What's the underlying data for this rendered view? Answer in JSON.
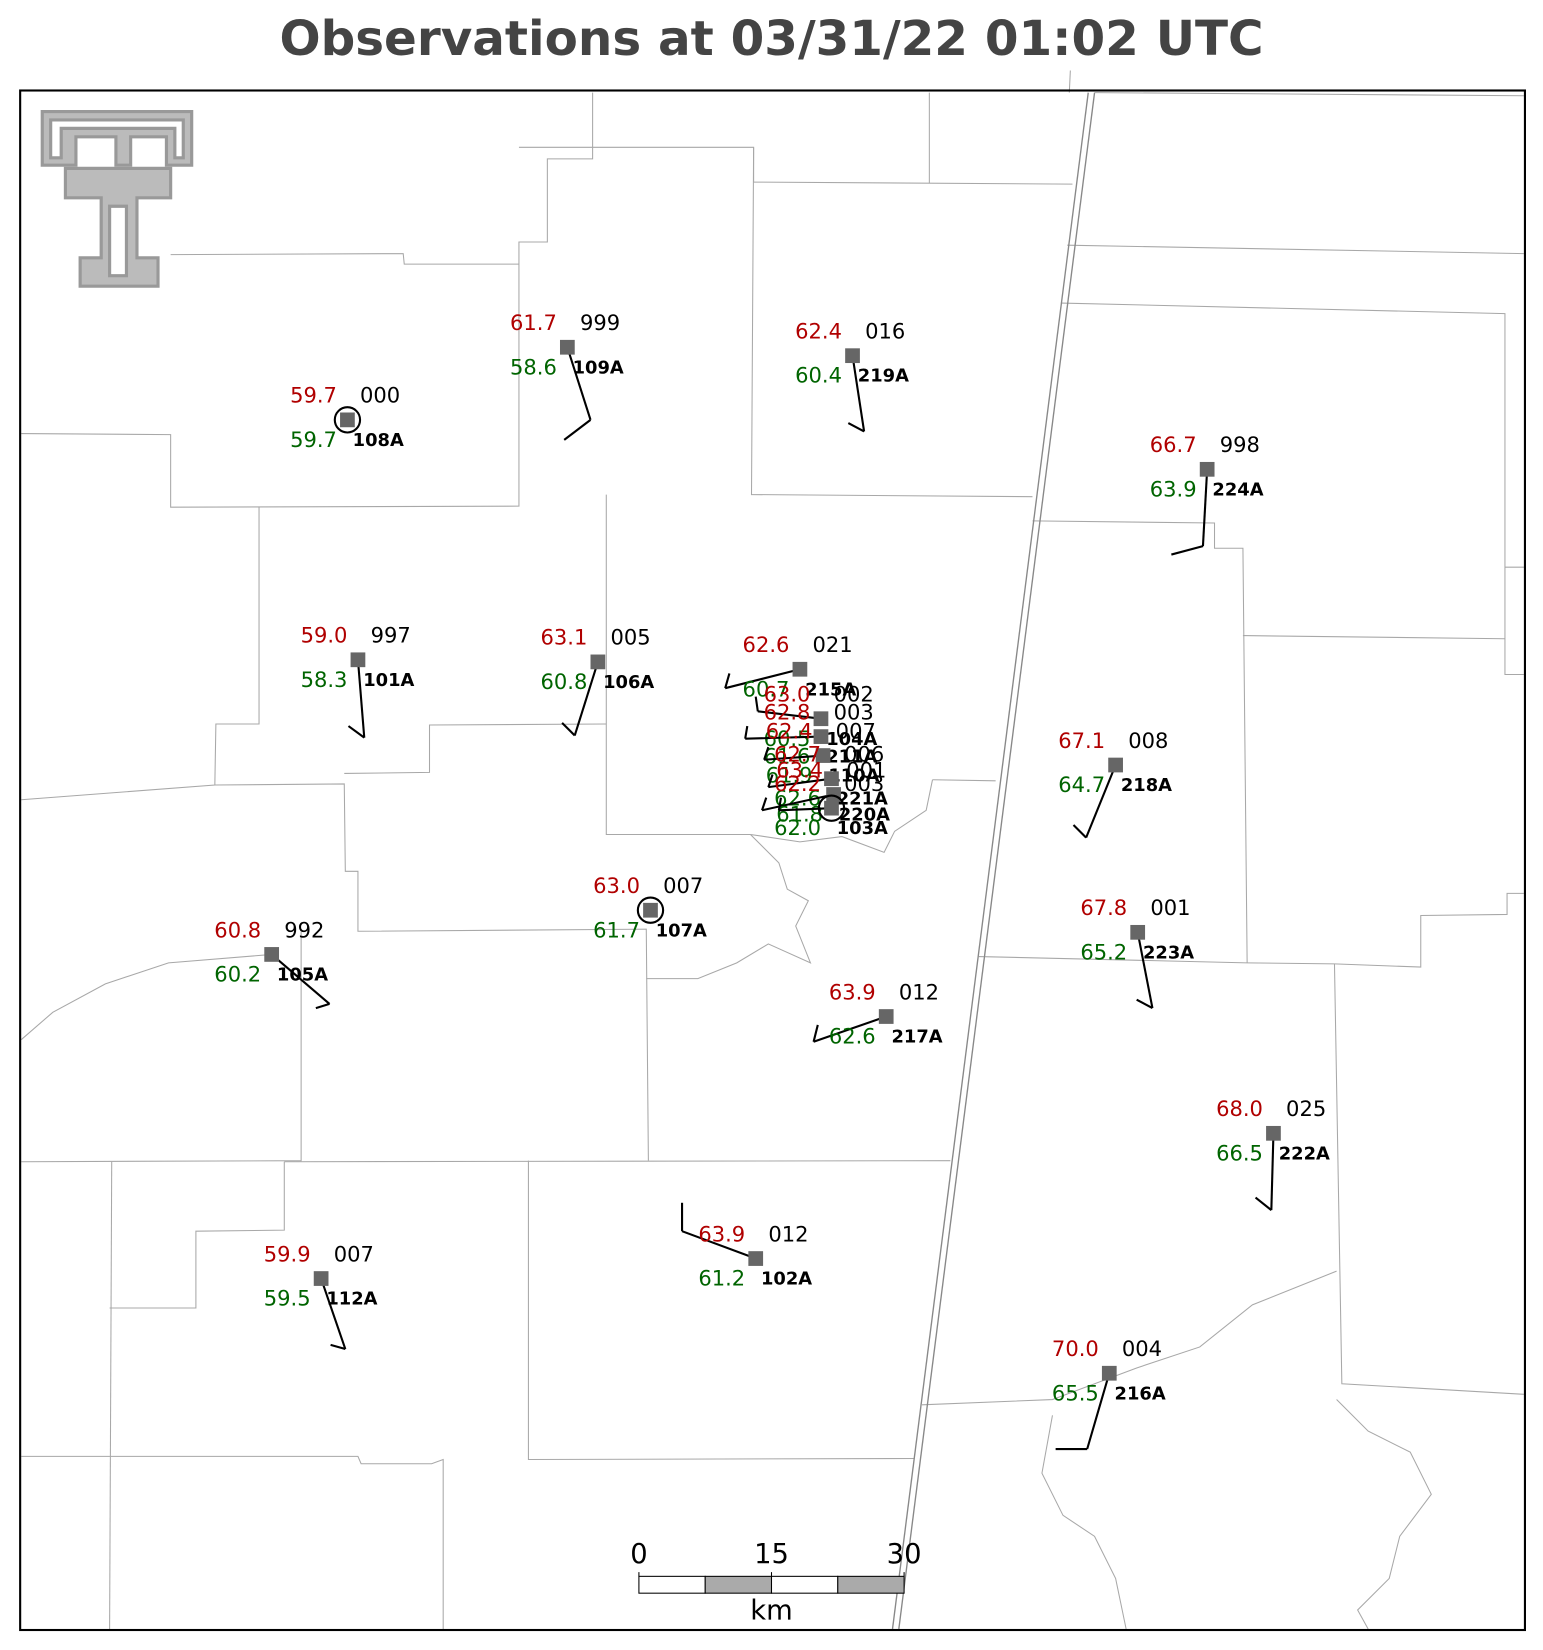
{
  "title": "Observations at 03/31/22 01:02 UTC",
  "stations": [
    {
      "id": "108A",
      "temp": "59.7",
      "dew": "59.7",
      "pres": "000",
      "ringed": true
    },
    {
      "id": "109A",
      "temp": "61.7",
      "dew": "58.6",
      "pres": "999",
      "ringed": false
    },
    {
      "id": "219A",
      "temp": "62.4",
      "dew": "60.4",
      "pres": "016",
      "ringed": false
    },
    {
      "id": "224A",
      "temp": "66.7",
      "dew": "63.9",
      "pres": "998",
      "ringed": false
    },
    {
      "id": "101A",
      "temp": "59.0",
      "dew": "58.3",
      "pres": "997",
      "ringed": false
    },
    {
      "id": "106A",
      "temp": "63.1",
      "dew": "60.8",
      "pres": "005",
      "ringed": false
    },
    {
      "id": "215A",
      "temp": "62.6",
      "dew": "60.7",
      "pres": "021",
      "ringed": false
    },
    {
      "id": "218A",
      "temp": "67.1",
      "dew": "64.7",
      "pres": "008",
      "ringed": false
    },
    {
      "id": "107A",
      "temp": "63.0",
      "dew": "61.7",
      "pres": "007",
      "ringed": true
    },
    {
      "id": "105A",
      "temp": "60.8",
      "dew": "60.2",
      "pres": "992",
      "ringed": false
    },
    {
      "id": "223A",
      "temp": "67.8",
      "dew": "65.2",
      "pres": "001",
      "ringed": false
    },
    {
      "id": "217A",
      "temp": "63.9",
      "dew": "62.6",
      "pres": "012",
      "ringed": false
    },
    {
      "id": "222A",
      "temp": "68.0",
      "dew": "66.5",
      "pres": "025",
      "ringed": false
    },
    {
      "id": "102A",
      "temp": "63.9",
      "dew": "61.2",
      "pres": "012",
      "ringed": false
    },
    {
      "id": "112A",
      "temp": "59.9",
      "dew": "59.5",
      "pres": "007",
      "ringed": false
    },
    {
      "id": "216A",
      "temp": "70.0",
      "dew": "65.5",
      "pres": "004",
      "ringed": false
    },
    {
      "id": "104A",
      "temp": "63.0",
      "dew": "60.5",
      "pres": "002",
      "ringed": false
    },
    {
      "id": "211A",
      "temp": "62.8",
      "dew": "61.6",
      "pres": "003",
      "ringed": false
    },
    {
      "id": "110A",
      "temp": "62.4",
      "dew": "61.9",
      "pres": "007",
      "ringed": false
    },
    {
      "id": "221A",
      "temp": "62.7",
      "dew": "62.6",
      "pres": "006",
      "ringed": false
    },
    {
      "id": "220A",
      "temp": "63.4",
      "dew": "61.8",
      "pres": "001",
      "ringed": false
    },
    {
      "id": "103A",
      "temp": "62.2",
      "dew": "62.0",
      "pres": "003",
      "ringed": true
    }
  ],
  "scale_bar": {
    "ticks": [
      0,
      15,
      30
    ],
    "unit": "km"
  }
}
